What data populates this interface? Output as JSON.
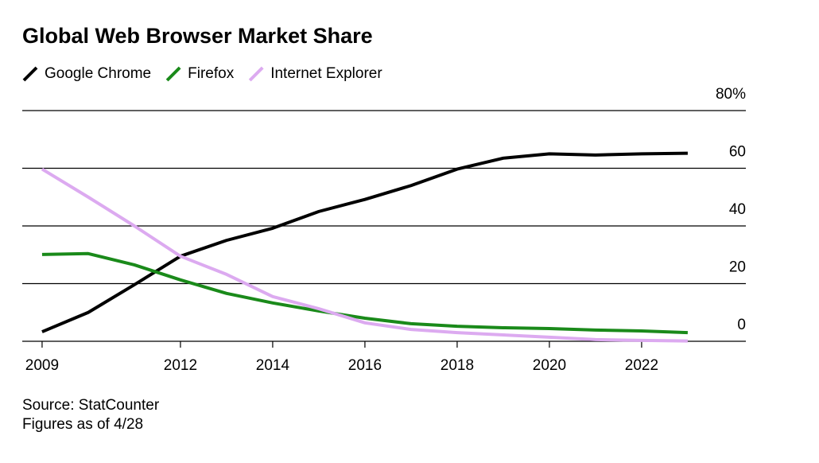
{
  "chart_data": {
    "type": "line",
    "title": "Global Web Browser Market Share",
    "x": [
      2009,
      2010,
      2011,
      2012,
      2013,
      2014,
      2015,
      2016,
      2017,
      2018,
      2019,
      2020,
      2021,
      2022,
      2023
    ],
    "series": [
      {
        "name": "Google Chrome",
        "color": "#000000",
        "values": [
          3.3,
          10,
          19.6,
          29.5,
          35,
          39.2,
          45,
          49.2,
          54,
          59.7,
          63.5,
          65,
          64.6,
          65,
          65.2
        ]
      },
      {
        "name": "Firefox",
        "color": "#1a8a1a",
        "values": [
          30.1,
          30.4,
          26.5,
          21.3,
          16.6,
          13.3,
          10.5,
          8,
          6.1,
          5.2,
          4.7,
          4.4,
          3.9,
          3.6,
          3
        ]
      },
      {
        "name": "Internet Explorer",
        "color": "#dcaaf0",
        "values": [
          59.7,
          50,
          40,
          29.5,
          23.2,
          15.5,
          11.3,
          6.4,
          4.1,
          3,
          2.2,
          1.4,
          0.6,
          0.3,
          0.1
        ]
      }
    ],
    "xlim": [
      2008.57,
      2024.26
    ],
    "xticks": [
      2009,
      2012,
      2014,
      2016,
      2018,
      2020,
      2022
    ],
    "ylim": [
      0,
      80
    ],
    "yticks": [
      0,
      20,
      40,
      60,
      {
        "value": 80,
        "label": "80%"
      }
    ],
    "grid": true,
    "source": "Source: StatCounter",
    "note": "Figures as of 4/28"
  }
}
